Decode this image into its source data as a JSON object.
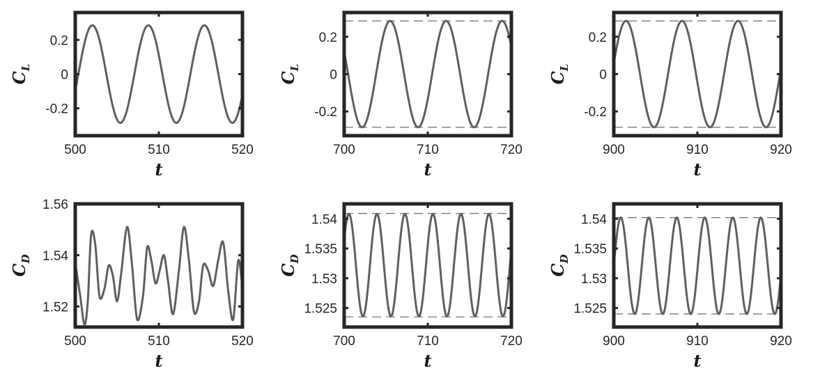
{
  "chart_data": [
    {
      "type": "line",
      "xlabel": "t",
      "ylabel": "C",
      "ylabel_sub": "L",
      "xlim": [
        500,
        520
      ],
      "ylim": [
        -0.36,
        0.36
      ],
      "xticks": [
        500,
        510,
        520
      ],
      "xtick_labels": [
        "500",
        "510",
        "520"
      ],
      "yticks": [
        0.2,
        0,
        -0.2
      ],
      "ytick_labels": [
        "0.2",
        "0",
        "-0.2"
      ],
      "signal": {
        "mean": 0,
        "amp": 0.285,
        "period": 6.7,
        "phase": -0.35
      },
      "dashed_levels": [],
      "line_color": "#5f5f5f"
    },
    {
      "type": "line",
      "xlabel": "t",
      "ylabel": "C",
      "ylabel_sub": "L",
      "xlim": [
        700,
        720
      ],
      "ylim": [
        -0.33,
        0.33
      ],
      "xticks": [
        700,
        710,
        720
      ],
      "xtick_labels": [
        "700",
        "710",
        "720"
      ],
      "yticks": [
        0.2,
        0,
        -0.2
      ],
      "ytick_labels": [
        "0.2",
        "0",
        "-0.2"
      ],
      "signal": {
        "mean": 0,
        "amp": 0.285,
        "period": 6.7,
        "phase": 2.7
      },
      "dashed_levels": [
        0.285,
        -0.285
      ],
      "line_color": "#5f5f5f"
    },
    {
      "type": "line",
      "xlabel": "t",
      "ylabel": "C",
      "ylabel_sub": "L",
      "xlim": [
        900,
        920
      ],
      "ylim": [
        -0.33,
        0.33
      ],
      "xticks": [
        900,
        910,
        920
      ],
      "xtick_labels": [
        "900",
        "910",
        "920"
      ],
      "yticks": [
        0.2,
        0,
        -0.2
      ],
      "ytick_labels": [
        "0.2",
        "0",
        "-0.2"
      ],
      "signal": {
        "mean": 0,
        "amp": 0.285,
        "period": 6.7,
        "phase": 0.2
      },
      "dashed_levels": [
        0.285,
        -0.285
      ],
      "line_color": "#5f5f5f"
    },
    {
      "type": "line",
      "xlabel": "t",
      "ylabel": "C",
      "ylabel_sub": "D",
      "xlim": [
        500,
        520
      ],
      "ylim": [
        1.512,
        1.56
      ],
      "xticks": [
        500,
        510,
        520
      ],
      "xtick_labels": [
        "500",
        "510",
        "520"
      ],
      "yticks": [
        1.56,
        1.54,
        1.52
      ],
      "ytick_labels": [
        "1.56",
        "1.54",
        "1.52"
      ],
      "series": [
        {
          "x": [
            500,
            500.6,
            501.1,
            501.5,
            501.9,
            502.4,
            502.9,
            503.5,
            504,
            504.5,
            505,
            505.5,
            506.2,
            506.8,
            507.4,
            508.1,
            508.6,
            509.1,
            509.6,
            510.1,
            510.6,
            511.1,
            511.7,
            512.4,
            513,
            513.6,
            514.2,
            514.8,
            515.3,
            515.9,
            516.5,
            517.1,
            517.7,
            518.3,
            518.9,
            519.5,
            520
          ],
          "y": [
            1.537,
            1.524,
            1.513,
            1.522,
            1.548,
            1.544,
            1.524,
            1.527,
            1.536,
            1.532,
            1.522,
            1.533,
            1.551,
            1.536,
            1.515,
            1.524,
            1.543,
            1.538,
            1.529,
            1.534,
            1.54,
            1.53,
            1.517,
            1.534,
            1.551,
            1.538,
            1.518,
            1.522,
            1.536,
            1.534,
            1.528,
            1.538,
            1.545,
            1.526,
            1.515,
            1.538,
            1.527
          ]
        }
      ],
      "dashed_levels": [],
      "line_color": "#5f5f5f"
    },
    {
      "type": "line",
      "xlabel": "t",
      "ylabel": "C",
      "ylabel_sub": "D",
      "xlim": [
        700,
        720
      ],
      "ylim": [
        1.5218,
        1.5425
      ],
      "xticks": [
        700,
        710,
        720
      ],
      "xtick_labels": [
        "700",
        "710",
        "720"
      ],
      "yticks": [
        1.54,
        1.535,
        1.53,
        1.525
      ],
      "ytick_labels": [
        "1.54",
        "1.535",
        "1.53",
        "1.525"
      ],
      "signal": {
        "mean": 1.5322,
        "amp": 0.0086,
        "period": 3.35,
        "phase": 0.5
      },
      "dashed_levels": [
        1.5409,
        1.5235
      ],
      "line_color": "#5f5f5f"
    },
    {
      "type": "line",
      "xlabel": "t",
      "ylabel": "C",
      "ylabel_sub": "D",
      "xlim": [
        900,
        920
      ],
      "ylim": [
        1.5218,
        1.5425
      ],
      "xticks": [
        900,
        910,
        920
      ],
      "xtick_labels": [
        "900",
        "910",
        "920"
      ],
      "yticks": [
        1.54,
        1.535,
        1.53,
        1.525
      ],
      "ytick_labels": [
        "1.54",
        "1.535",
        "1.53",
        "1.525"
      ],
      "signal": {
        "mean": 1.5321,
        "amp": 0.0081,
        "period": 3.35,
        "phase": 0.0
      },
      "dashed_levels": [
        1.5402,
        1.524
      ],
      "line_color": "#5f5f5f"
    }
  ]
}
